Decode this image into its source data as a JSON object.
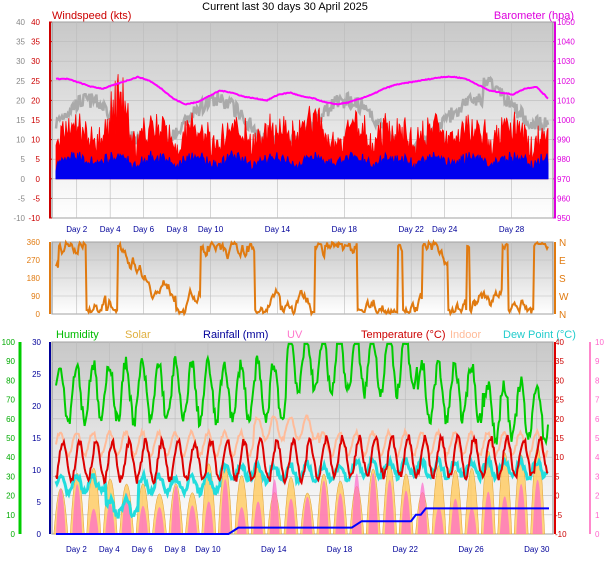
{
  "title": "Current last 30 days 30 April 2025",
  "colors": {
    "wind_gust": "#ff0000",
    "wind_avg": "#0000ee",
    "wind_dir_bar": "#aaaaaa",
    "barometer": "#ff00ff",
    "direction": "#e07a10",
    "humidity": "#00cc00",
    "solar": "#ffcc66",
    "rainfall": "#0000ff",
    "uv": "#ff66cc",
    "temperature": "#dd0000",
    "indoor": "#ffbb99",
    "dewpoint": "#22dddd"
  },
  "chart_data": [
    {
      "type": "line",
      "title": "",
      "series": [
        {
          "name": "Windspeed (kts)",
          "axis": "left",
          "range": [
            -10,
            40
          ]
        },
        {
          "name": "Barometer (hpa)",
          "axis": "right",
          "range": [
            950,
            1050
          ]
        }
      ],
      "left_axis": {
        "label": "Windspeed (kts)",
        "ticks": [
          "-10",
          "-5",
          "0",
          "5",
          "10",
          "15",
          "20",
          "25",
          "30",
          "35",
          "40"
        ]
      },
      "right_axis": {
        "label": "Barometer (hpa)",
        "ticks": [
          "950",
          "960",
          "970",
          "980",
          "990",
          "1000",
          "1010",
          "1020",
          "1030",
          "1040",
          "1050"
        ]
      },
      "x_ticks": [
        "Day 2",
        "Day 4",
        "Day 6",
        "Day 8",
        "Day 10",
        "Day 14",
        "Day 18",
        "Day 22",
        "Day 24",
        "Day 28"
      ],
      "barometer_profile": [
        1021,
        1021,
        1019,
        1017,
        1016,
        1018,
        1020,
        1022,
        1020,
        1016,
        1011,
        1008,
        1009,
        1012,
        1015,
        1014,
        1012,
        1011,
        1010,
        1013,
        1014,
        1012,
        1011,
        1009,
        1008,
        1009,
        1011,
        1013,
        1016,
        1018,
        1019,
        1020,
        1021,
        1022,
        1022,
        1021,
        1018,
        1015,
        1014,
        1013,
        1016,
        1017,
        1011
      ],
      "grid": true
    },
    {
      "type": "scatter",
      "title": "",
      "left_axis": {
        "label": "",
        "ticks": [
          "0",
          "90",
          "180",
          "270",
          "360"
        ]
      },
      "right_axis": {
        "label": "",
        "ticks": [
          "N",
          "W",
          "S",
          "E",
          "N"
        ]
      },
      "grid": true
    },
    {
      "type": "line",
      "title": "",
      "legend": [
        "Humidity",
        "Solar",
        "Rainfall (mm)",
        "UV",
        "Temperature (°C)",
        "Indoor",
        "Dew Point (°C)"
      ],
      "axis_humidity": {
        "ticks": [
          "0",
          "10",
          "20",
          "30",
          "40",
          "50",
          "60",
          "70",
          "80",
          "90",
          "100"
        ]
      },
      "axis_rain": {
        "ticks": [
          "0",
          "5",
          "10",
          "15",
          "20",
          "25",
          "30"
        ]
      },
      "axis_temp": {
        "ticks": [
          "-10",
          "-5",
          "0",
          "5",
          "10",
          "15",
          "20",
          "25",
          "30",
          "35",
          "40"
        ]
      },
      "axis_uv": {
        "ticks": [
          "0",
          "1",
          "2",
          "3",
          "4",
          "5",
          "6",
          "7",
          "8",
          "9",
          "10"
        ]
      },
      "x_ticks": [
        "Day 2",
        "Day 4",
        "Day 6",
        "Day 8",
        "Day 10",
        "Day 14",
        "Day 18",
        "Day 22",
        "Day 26",
        "Day 30"
      ],
      "grid": true
    }
  ]
}
